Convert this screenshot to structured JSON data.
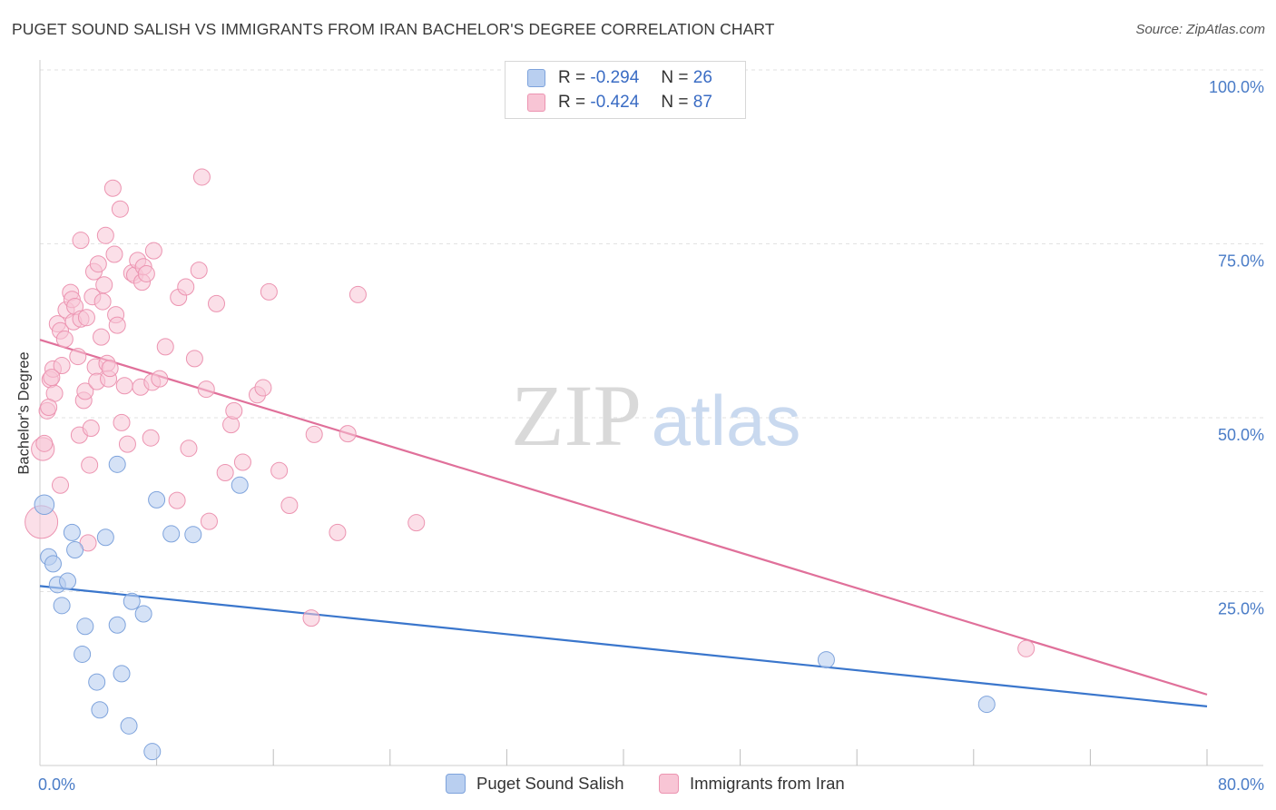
{
  "title": "PUGET SOUND SALISH VS IMMIGRANTS FROM IRAN BACHELOR'S DEGREE CORRELATION CHART",
  "source": "Source: ZipAtlas.com",
  "watermark": {
    "zip": "ZIP",
    "atlas": "atlas"
  },
  "colors": {
    "blue_fill": "#b9cff0",
    "blue_stroke": "#7ea3dc",
    "blue_line": "#3a76cc",
    "pink_fill": "#f8c5d5",
    "pink_stroke": "#ec94b1",
    "pink_line": "#e0709a",
    "tick_label": "#4a7cc7",
    "grid": "#e2e2e2"
  },
  "legend": {
    "r_label": "R =",
    "n_label": "N =",
    "series": [
      {
        "r": "-0.294",
        "n": "26"
      },
      {
        "r": "-0.424",
        "n": "87"
      }
    ]
  },
  "chart_data": {
    "type": "scatter",
    "xlabel": "",
    "ylabel": "Bachelor's Degree",
    "xlim": [
      0,
      80
    ],
    "ylim": [
      0,
      100
    ],
    "x_tick_labels": [
      "0.0%",
      "80.0%"
    ],
    "y_tick_labels": [
      "25.0%",
      "50.0%",
      "75.0%",
      "100.0%"
    ],
    "y_ticks": [
      25,
      50,
      75,
      100
    ],
    "grid": true,
    "legend_position": "bottom",
    "series": [
      {
        "name": "Puget Sound Salish",
        "trend": {
          "x": [
            0,
            80
          ],
          "y": [
            25.8,
            8.5
          ]
        },
        "points": [
          {
            "x": 0.3,
            "y": 37.5,
            "s": 1.2
          },
          {
            "x": 0.6,
            "y": 30.0,
            "s": 1
          },
          {
            "x": 0.9,
            "y": 29.0,
            "s": 1
          },
          {
            "x": 1.2,
            "y": 26.0,
            "s": 1
          },
          {
            "x": 1.5,
            "y": 23.0,
            "s": 1
          },
          {
            "x": 1.9,
            "y": 26.5,
            "s": 1
          },
          {
            "x": 2.2,
            "y": 33.5,
            "s": 1
          },
          {
            "x": 2.4,
            "y": 31.0,
            "s": 1
          },
          {
            "x": 3.1,
            "y": 20.0,
            "s": 1
          },
          {
            "x": 2.9,
            "y": 16.0,
            "s": 1
          },
          {
            "x": 3.9,
            "y": 12.0,
            "s": 1
          },
          {
            "x": 4.1,
            "y": 8.0,
            "s": 1
          },
          {
            "x": 4.5,
            "y": 32.8,
            "s": 1
          },
          {
            "x": 5.3,
            "y": 20.2,
            "s": 1
          },
          {
            "x": 5.6,
            "y": 13.2,
            "s": 1
          },
          {
            "x": 6.1,
            "y": 5.7,
            "s": 1
          },
          {
            "x": 6.3,
            "y": 23.6,
            "s": 1
          },
          {
            "x": 7.1,
            "y": 21.8,
            "s": 1
          },
          {
            "x": 7.7,
            "y": 2.0,
            "s": 1
          },
          {
            "x": 8.0,
            "y": 38.2,
            "s": 1
          },
          {
            "x": 9.0,
            "y": 33.3,
            "s": 1
          },
          {
            "x": 10.5,
            "y": 33.2,
            "s": 1
          },
          {
            "x": 5.3,
            "y": 43.3,
            "s": 1
          },
          {
            "x": 13.7,
            "y": 40.3,
            "s": 1
          },
          {
            "x": 53.9,
            "y": 15.2,
            "s": 1
          },
          {
            "x": 64.9,
            "y": 8.8,
            "s": 1
          }
        ]
      },
      {
        "name": "Immigrants from Iran",
        "trend": {
          "x": [
            0,
            80
          ],
          "y": [
            61.2,
            10.2
          ]
        },
        "points": [
          {
            "x": 0.1,
            "y": 35.0,
            "s": 2.0
          },
          {
            "x": 0.2,
            "y": 45.5,
            "s": 1.4
          },
          {
            "x": 0.5,
            "y": 51.0,
            "s": 1
          },
          {
            "x": 0.7,
            "y": 55.5,
            "s": 1
          },
          {
            "x": 0.9,
            "y": 57.0,
            "s": 1
          },
          {
            "x": 1.0,
            "y": 53.5,
            "s": 1
          },
          {
            "x": 1.2,
            "y": 63.5,
            "s": 1
          },
          {
            "x": 1.4,
            "y": 62.5,
            "s": 1
          },
          {
            "x": 1.5,
            "y": 57.5,
            "s": 1
          },
          {
            "x": 1.4,
            "y": 40.3,
            "s": 1
          },
          {
            "x": 1.7,
            "y": 61.3,
            "s": 1
          },
          {
            "x": 1.8,
            "y": 65.5,
            "s": 1
          },
          {
            "x": 2.1,
            "y": 68.0,
            "s": 1
          },
          {
            "x": 2.2,
            "y": 67.0,
            "s": 1
          },
          {
            "x": 2.3,
            "y": 63.8,
            "s": 1
          },
          {
            "x": 2.4,
            "y": 66.0,
            "s": 1
          },
          {
            "x": 2.6,
            "y": 58.8,
            "s": 1
          },
          {
            "x": 2.7,
            "y": 47.5,
            "s": 1
          },
          {
            "x": 2.8,
            "y": 75.5,
            "s": 1
          },
          {
            "x": 2.8,
            "y": 64.2,
            "s": 1
          },
          {
            "x": 3.0,
            "y": 52.5,
            "s": 1
          },
          {
            "x": 3.1,
            "y": 53.8,
            "s": 1
          },
          {
            "x": 3.2,
            "y": 64.4,
            "s": 1
          },
          {
            "x": 3.3,
            "y": 32.0,
            "s": 1
          },
          {
            "x": 3.4,
            "y": 43.2,
            "s": 1
          },
          {
            "x": 3.5,
            "y": 48.5,
            "s": 1
          },
          {
            "x": 3.6,
            "y": 67.4,
            "s": 1
          },
          {
            "x": 3.7,
            "y": 71.0,
            "s": 1
          },
          {
            "x": 3.8,
            "y": 57.3,
            "s": 1
          },
          {
            "x": 3.9,
            "y": 55.2,
            "s": 1
          },
          {
            "x": 4.0,
            "y": 72.1,
            "s": 1
          },
          {
            "x": 4.2,
            "y": 61.6,
            "s": 1
          },
          {
            "x": 4.3,
            "y": 66.7,
            "s": 1
          },
          {
            "x": 4.4,
            "y": 69.1,
            "s": 1
          },
          {
            "x": 4.5,
            "y": 76.2,
            "s": 1
          },
          {
            "x": 4.6,
            "y": 57.8,
            "s": 1
          },
          {
            "x": 4.7,
            "y": 55.6,
            "s": 1
          },
          {
            "x": 4.8,
            "y": 57.1,
            "s": 1
          },
          {
            "x": 5.0,
            "y": 83.0,
            "s": 1
          },
          {
            "x": 5.1,
            "y": 73.5,
            "s": 1
          },
          {
            "x": 5.2,
            "y": 64.8,
            "s": 1
          },
          {
            "x": 5.3,
            "y": 63.3,
            "s": 1
          },
          {
            "x": 5.5,
            "y": 80.0,
            "s": 1
          },
          {
            "x": 5.6,
            "y": 49.3,
            "s": 1
          },
          {
            "x": 5.8,
            "y": 54.6,
            "s": 1
          },
          {
            "x": 6.0,
            "y": 46.2,
            "s": 1
          },
          {
            "x": 6.3,
            "y": 70.8,
            "s": 1
          },
          {
            "x": 6.5,
            "y": 70.5,
            "s": 1
          },
          {
            "x": 6.7,
            "y": 72.6,
            "s": 1
          },
          {
            "x": 6.9,
            "y": 54.4,
            "s": 1
          },
          {
            "x": 7.0,
            "y": 69.5,
            "s": 1
          },
          {
            "x": 7.1,
            "y": 71.7,
            "s": 1
          },
          {
            "x": 7.3,
            "y": 70.7,
            "s": 1
          },
          {
            "x": 7.6,
            "y": 47.1,
            "s": 1
          },
          {
            "x": 7.7,
            "y": 55.1,
            "s": 1
          },
          {
            "x": 7.8,
            "y": 74.0,
            "s": 1
          },
          {
            "x": 8.2,
            "y": 55.6,
            "s": 1
          },
          {
            "x": 8.6,
            "y": 60.2,
            "s": 1
          },
          {
            "x": 9.4,
            "y": 38.1,
            "s": 1
          },
          {
            "x": 9.5,
            "y": 67.3,
            "s": 1
          },
          {
            "x": 10.0,
            "y": 68.8,
            "s": 1
          },
          {
            "x": 10.2,
            "y": 45.6,
            "s": 1
          },
          {
            "x": 10.6,
            "y": 58.5,
            "s": 1
          },
          {
            "x": 10.9,
            "y": 71.2,
            "s": 1
          },
          {
            "x": 11.1,
            "y": 84.6,
            "s": 1
          },
          {
            "x": 11.4,
            "y": 54.1,
            "s": 1
          },
          {
            "x": 11.6,
            "y": 35.1,
            "s": 1
          },
          {
            "x": 12.1,
            "y": 66.4,
            "s": 1
          },
          {
            "x": 12.7,
            "y": 42.1,
            "s": 1
          },
          {
            "x": 13.1,
            "y": 49.0,
            "s": 1
          },
          {
            "x": 13.3,
            "y": 51.0,
            "s": 1
          },
          {
            "x": 13.9,
            "y": 43.6,
            "s": 1
          },
          {
            "x": 14.9,
            "y": 53.3,
            "s": 1
          },
          {
            "x": 15.3,
            "y": 54.3,
            "s": 1
          },
          {
            "x": 15.7,
            "y": 68.1,
            "s": 1
          },
          {
            "x": 16.4,
            "y": 42.4,
            "s": 1
          },
          {
            "x": 17.1,
            "y": 37.4,
            "s": 1
          },
          {
            "x": 18.6,
            "y": 21.2,
            "s": 1
          },
          {
            "x": 18.8,
            "y": 47.6,
            "s": 1
          },
          {
            "x": 20.4,
            "y": 33.5,
            "s": 1
          },
          {
            "x": 21.1,
            "y": 47.7,
            "s": 1
          },
          {
            "x": 21.8,
            "y": 67.7,
            "s": 1
          },
          {
            "x": 25.8,
            "y": 34.9,
            "s": 1
          },
          {
            "x": 67.6,
            "y": 16.8,
            "s": 1
          },
          {
            "x": 0.3,
            "y": 46.3,
            "s": 1
          },
          {
            "x": 0.6,
            "y": 51.5,
            "s": 1
          },
          {
            "x": 0.8,
            "y": 55.8,
            "s": 1
          }
        ]
      }
    ]
  },
  "bottom_legend": [
    {
      "label": "Puget Sound Salish"
    },
    {
      "label": "Immigrants from Iran"
    }
  ]
}
